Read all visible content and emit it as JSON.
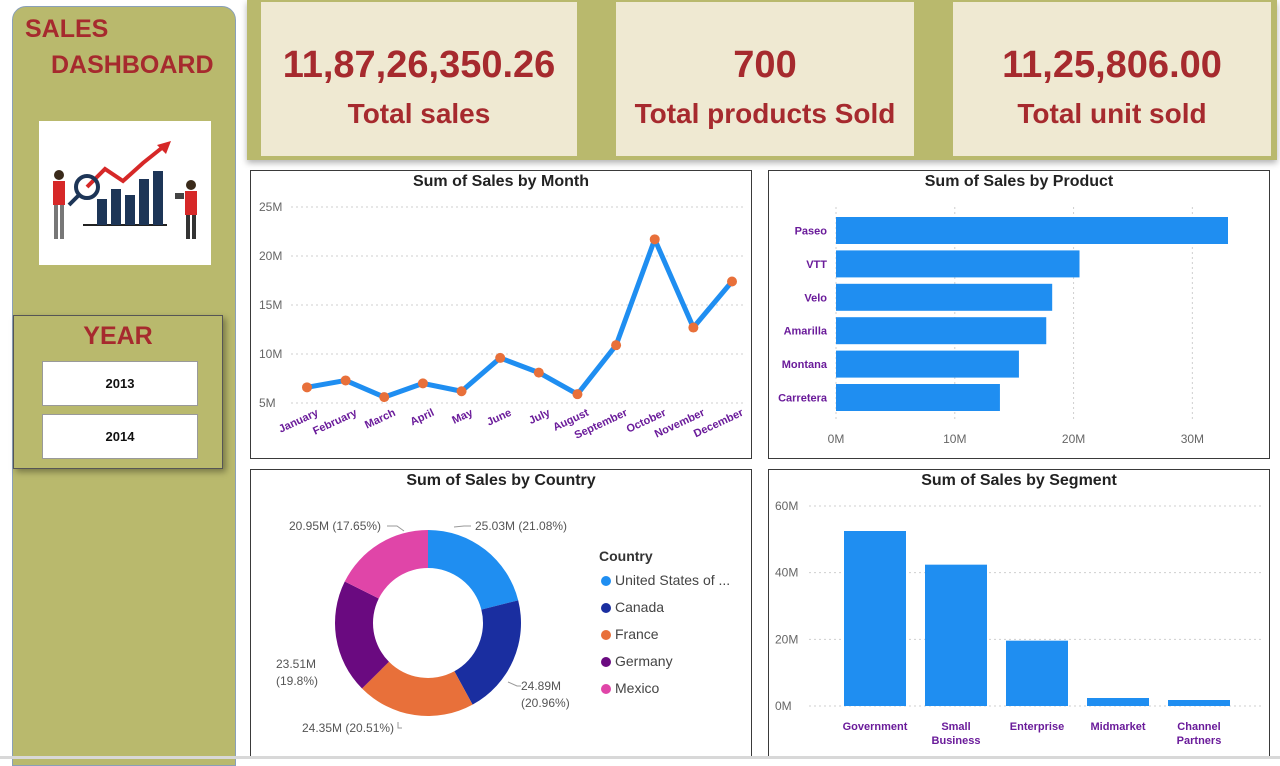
{
  "sidebar": {
    "title_line1": "SALES",
    "title_line2": "DASHBOARD",
    "logo_icon": "sales-growth-illustration-icon",
    "year_filter": {
      "title": "YEAR",
      "options": [
        "2013",
        "2014"
      ]
    }
  },
  "kpis": [
    {
      "value": "11,87,26,350.26",
      "label": "Total sales"
    },
    {
      "value": "700",
      "label": "Total products Sold"
    },
    {
      "value": "11,25,806.00",
      "label": "Total unit sold"
    }
  ],
  "colors": {
    "accent": "#a62a2e",
    "sidebar": "#b9b96d",
    "kpi_bg": "#efe9d2",
    "bar": "#1f8ef1",
    "line_marker": "#e8703a",
    "category_label": "#6a1b9a"
  },
  "chart_data": [
    {
      "id": "month",
      "type": "line",
      "title": "Sum of Sales by Month",
      "categories": [
        "January",
        "February",
        "March",
        "April",
        "May",
        "June",
        "July",
        "August",
        "September",
        "October",
        "November",
        "December"
      ],
      "values": [
        6.6,
        7.3,
        5.6,
        7.0,
        6.2,
        9.6,
        8.1,
        5.9,
        10.9,
        21.7,
        12.7,
        17.4
      ],
      "ylim": [
        5,
        25
      ],
      "yticks": [
        "5M",
        "10M",
        "15M",
        "20M",
        "25M"
      ],
      "ytick_values": [
        5,
        10,
        15,
        20,
        25
      ]
    },
    {
      "id": "product",
      "type": "bar",
      "orientation": "horizontal",
      "title": "Sum of Sales by Product",
      "categories": [
        "Paseo",
        "VTT",
        "Velo",
        "Amarilla",
        "Montana",
        "Carretera"
      ],
      "values": [
        33.0,
        20.5,
        18.2,
        17.7,
        15.4,
        13.8
      ],
      "xlim": [
        0,
        33
      ],
      "xticks": [
        "0M",
        "10M",
        "20M",
        "30M"
      ],
      "xtick_values": [
        0,
        10,
        20,
        30
      ]
    },
    {
      "id": "country",
      "type": "pie",
      "title": "Sum of Sales by Country",
      "legend_title": "Country",
      "legend_labels": [
        "United States of ...",
        "Canada",
        "France",
        "Germany",
        "Mexico"
      ],
      "slices": [
        {
          "name": "United States of America",
          "value": 25.03,
          "label": "25.03M (21.08%)",
          "color": "#1f8ef1"
        },
        {
          "name": "Canada",
          "value": 24.89,
          "label_value": "24.89M",
          "label_pct": "(20.96%)",
          "color": "#1a2ea0"
        },
        {
          "name": "France",
          "value": 24.35,
          "label": "24.35M (20.51%)",
          "color": "#e8703a"
        },
        {
          "name": "Germany",
          "value": 23.51,
          "label_value": "23.51M",
          "label_pct": "(19.8%)",
          "color": "#6a0a80"
        },
        {
          "name": "Mexico",
          "value": 20.95,
          "label": "20.95M (17.65%)",
          "color": "#e045a8"
        }
      ]
    },
    {
      "id": "segment",
      "type": "bar",
      "title": "Sum of Sales by Segment",
      "categories": [
        "Government",
        "Small Business",
        "Enterprise",
        "Midmarket",
        "Channel Partners"
      ],
      "category_lines": [
        [
          "Government"
        ],
        [
          "Small",
          "Business"
        ],
        [
          "Enterprise"
        ],
        [
          "Midmarket"
        ],
        [
          "Channel",
          "Partners"
        ]
      ],
      "values": [
        52.5,
        42.4,
        19.6,
        2.4,
        1.8
      ],
      "ylim": [
        0,
        60
      ],
      "yticks": [
        "0M",
        "20M",
        "40M",
        "60M"
      ],
      "ytick_values": [
        0,
        20,
        40,
        60
      ]
    }
  ]
}
